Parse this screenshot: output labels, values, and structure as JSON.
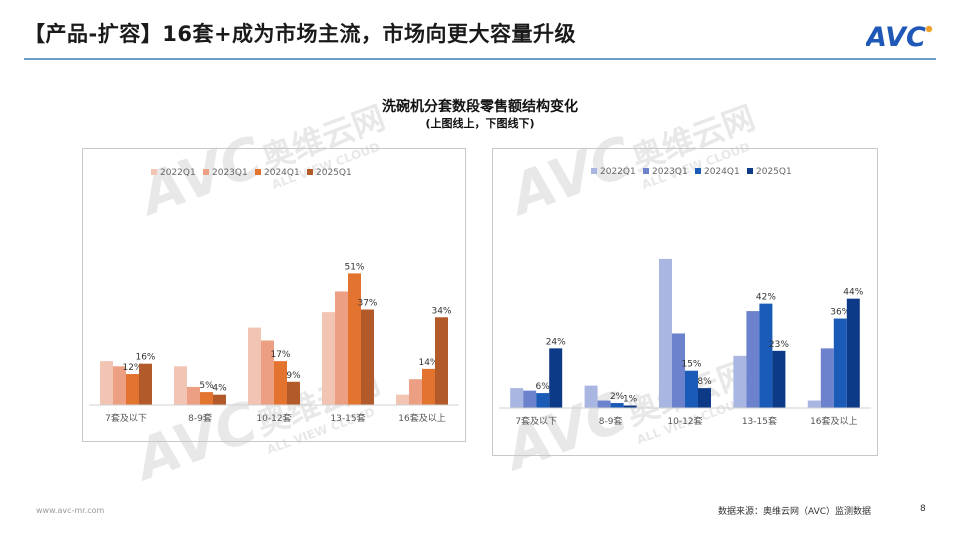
{
  "header": {
    "title": "【产品-扩容】16套+成为市场主流，市场向更大容量升级",
    "logo_text": "AVC"
  },
  "watermark": {
    "brand": "AVC",
    "name": "奥维云网",
    "english": "ALL VIEW CLOUD"
  },
  "chart_title": "洗碗机分套数段零售额结构变化",
  "chart_subtitle": "(上图线上，下图线下)",
  "footer": {
    "url": "www.avc-mr.com",
    "source": "数据来源：奥维云网（AVC）监测数据",
    "page": "8"
  },
  "colors": {
    "left": [
      "#f2c4b4",
      "#ec9f82",
      "#e2742f",
      "#b25a2a"
    ],
    "right": [
      "#aab6e2",
      "#6d82cc",
      "#1a5bb8",
      "#0c3a86"
    ],
    "rule": "#6a9ec8",
    "logo": "#1f58b6"
  },
  "chart_data": [
    {
      "type": "bar",
      "channel": "线上",
      "categories": [
        "7套及以下",
        "8-9套",
        "10-12套",
        "13-15套",
        "16套及以上"
      ],
      "series": [
        {
          "name": "2022Q1",
          "values": [
            17,
            15,
            30,
            36,
            4
          ]
        },
        {
          "name": "2023Q1",
          "values": [
            15,
            7,
            25,
            44,
            10
          ]
        },
        {
          "name": "2024Q1",
          "values": [
            12,
            5,
            17,
            51,
            14
          ]
        },
        {
          "name": "2025Q1",
          "values": [
            16,
            4,
            9,
            37,
            34
          ]
        }
      ],
      "data_labels": {
        "2024Q1": [
          "12%",
          "5%",
          "17%",
          "51%",
          "14%"
        ],
        "2025Q1": [
          "16%",
          "4%",
          "9%",
          "37%",
          "34%"
        ]
      },
      "ylim": [
        0,
        62
      ],
      "legend": "top-left",
      "grid": false
    },
    {
      "type": "bar",
      "channel": "线下",
      "categories": [
        "7套及以下",
        "8-9套",
        "10-12套",
        "13-15套",
        "16套及以上"
      ],
      "series": [
        {
          "name": "2022Q1",
          "values": [
            8,
            9,
            60,
            21,
            3
          ]
        },
        {
          "name": "2023Q1",
          "values": [
            7,
            3,
            30,
            39,
            24
          ]
        },
        {
          "name": "2024Q1",
          "values": [
            6,
            2,
            15,
            42,
            36
          ]
        },
        {
          "name": "2025Q1",
          "values": [
            24,
            1,
            8,
            23,
            44
          ]
        }
      ],
      "data_labels": {
        "2024Q1": [
          "6%",
          "2%",
          "15%",
          "42%",
          "36%"
        ],
        "2025Q1": [
          "24%",
          "1%",
          "8%",
          "23%",
          "44%"
        ]
      },
      "ylim": [
        0,
        66
      ],
      "legend": "top-left",
      "grid": false
    }
  ]
}
